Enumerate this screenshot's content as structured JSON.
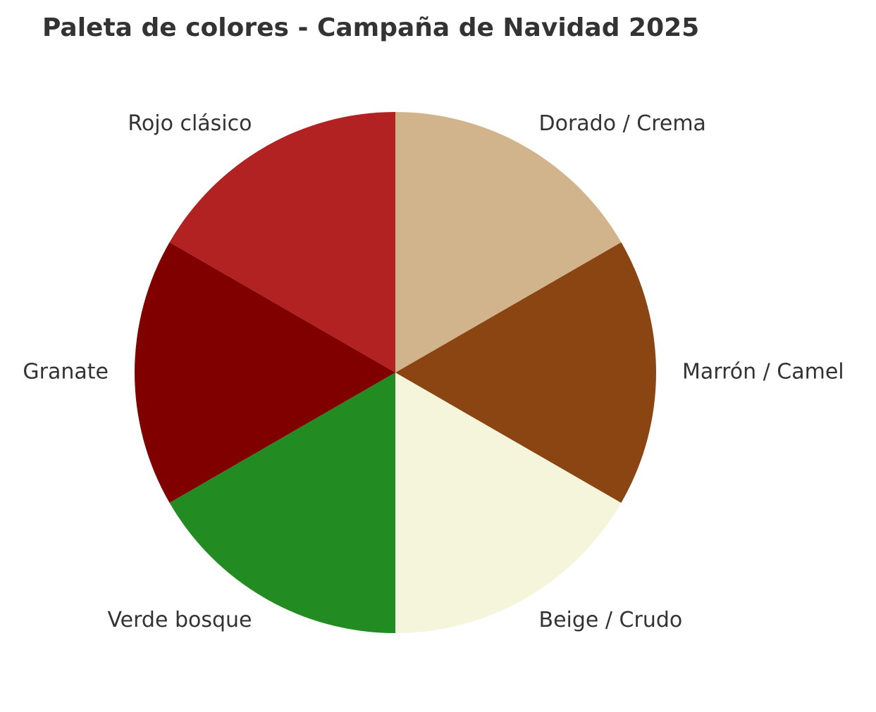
{
  "chart_data": {
    "type": "pie",
    "title": "Paleta de colores - Campaña de Navidad 2025",
    "start_angle": 90,
    "direction": "counterclockwise",
    "slices": [
      {
        "label": "Rojo clásico",
        "value": 1,
        "color": "#B22222"
      },
      {
        "label": "Granate",
        "value": 1,
        "color": "#800000"
      },
      {
        "label": "Verde bosque",
        "value": 1,
        "color": "#228B22"
      },
      {
        "label": "Beige / Crudo",
        "value": 1,
        "color": "#F5F5DC"
      },
      {
        "label": "Marrón / Camel",
        "value": 1,
        "color": "#8B4513"
      },
      {
        "label": "Dorado / Crema",
        "value": 1,
        "color": "#D2B48C"
      }
    ]
  }
}
